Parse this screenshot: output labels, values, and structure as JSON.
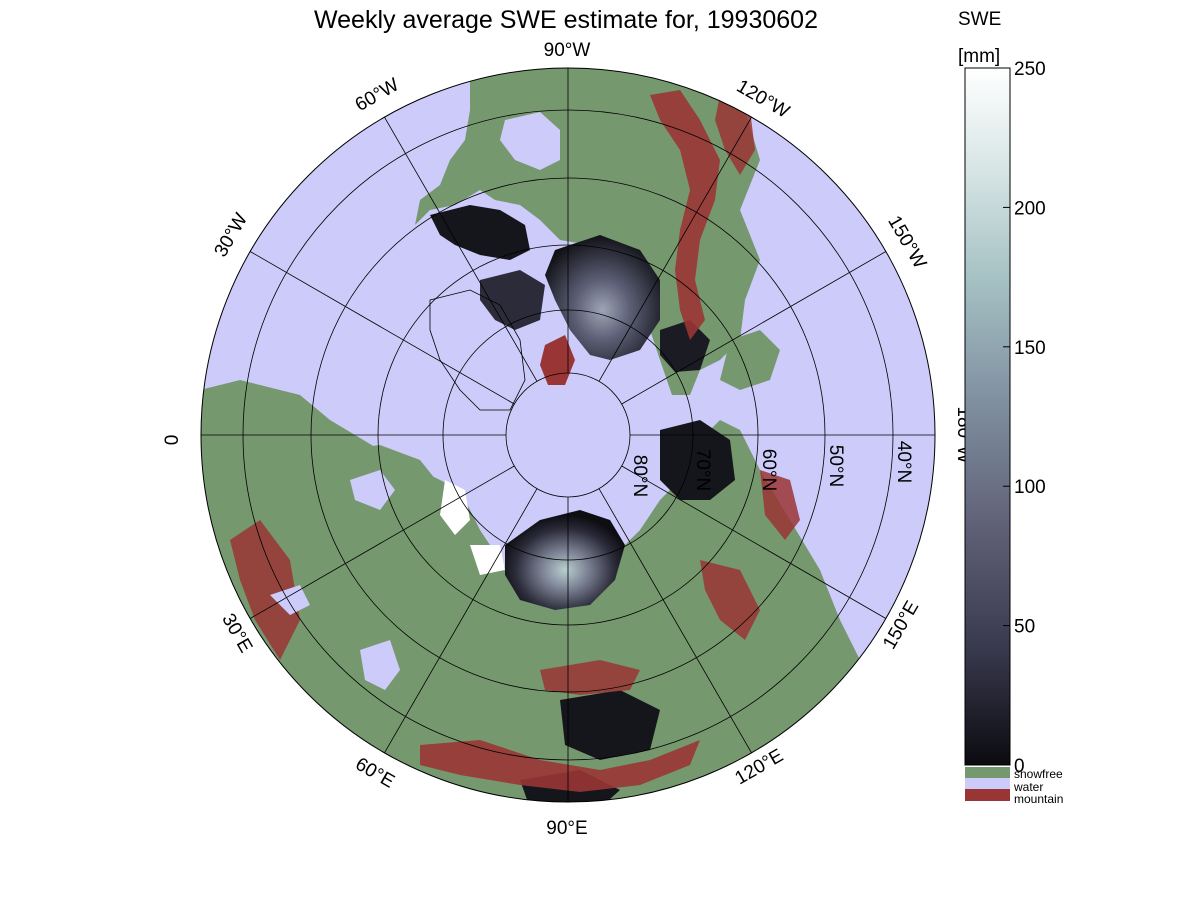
{
  "title": "Weekly average SWE estimate for, 19930602",
  "colorbar": {
    "title_line1": "SWE",
    "title_line2": "[mm]",
    "ticks": [
      {
        "value": 250,
        "label": "250"
      },
      {
        "value": 200,
        "label": "200"
      },
      {
        "value": 150,
        "label": "150"
      },
      {
        "value": 100,
        "label": "100"
      },
      {
        "value": 50,
        "label": "50"
      },
      {
        "value": 0,
        "label": "0"
      }
    ],
    "range": [
      0,
      250
    ],
    "colors": [
      "#0b0b10",
      "#3a3a4f",
      "#5f6077",
      "#7f8fa0",
      "#a6c2c4",
      "#d9e6e6",
      "#ffffff"
    ],
    "categories": [
      {
        "label": "snowfree",
        "color": "#76986f"
      },
      {
        "label": "water",
        "color": "#cccbfa"
      },
      {
        "label": "mountain",
        "color": "#9a3535"
      }
    ]
  },
  "map": {
    "projection": "north-polar-stereographic",
    "longitude_labels": [
      "90°W",
      "120°W",
      "150°W",
      "180°W",
      "150°E",
      "120°E",
      "90°E",
      "60°E",
      "30°E",
      "0",
      "30°W",
      "60°W"
    ],
    "latitude_labels": [
      "80°N",
      "70°N",
      "60°N",
      "50°N",
      "40°N"
    ],
    "colors": {
      "water": "#cccbfa",
      "snowfree": "#76986f",
      "mountain": "#9a3535",
      "snow_low": "#0d0d12",
      "snow_high": "#b8cfcf",
      "snow_max": "#ffffff"
    }
  }
}
